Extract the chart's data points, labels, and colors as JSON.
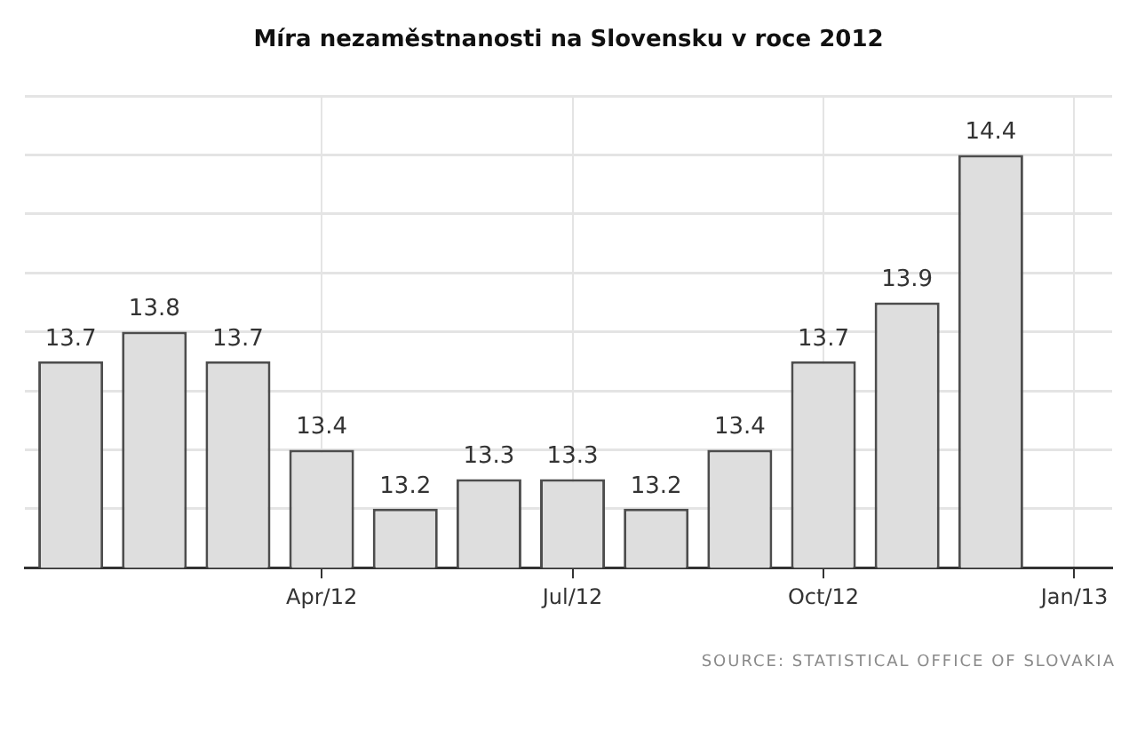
{
  "chart_data": {
    "type": "bar",
    "title": "Míra nezaměstnanosti na Slovensku v roce 2012",
    "x": [
      "2012-01",
      "2012-02",
      "2012-03",
      "2012-04",
      "2012-05",
      "2012-06",
      "2012-07",
      "2012-08",
      "2012-09",
      "2012-10",
      "2012-11",
      "2012-12"
    ],
    "values": [
      13.7,
      13.8,
      13.7,
      13.4,
      13.2,
      13.3,
      13.3,
      13.2,
      13.4,
      13.7,
      13.9,
      14.4
    ],
    "color": "#dedede",
    "xlim": [
      "2011-12-15",
      "2013-01-15"
    ],
    "xticks": [
      {
        "value": "2012-04",
        "label": "Apr/12"
      },
      {
        "value": "2012-07",
        "label": "Jul/12"
      },
      {
        "value": "2012-10",
        "label": "Oct/12"
      },
      {
        "value": "2013-01",
        "label": "Jan/13"
      }
    ],
    "ylim": [
      13,
      14.6
    ],
    "yticks": [
      {
        "value": 13,
        "label": null
      },
      {
        "value": 13.2,
        "label": null
      },
      {
        "value": 13.4,
        "label": null
      },
      {
        "value": 13.6,
        "label": null
      },
      {
        "value": 13.8,
        "label": null
      },
      {
        "value": 14,
        "label": null
      },
      {
        "value": 14.2,
        "label": null
      },
      {
        "value": 14.4,
        "label": null
      },
      {
        "value": 14.6,
        "label": null
      }
    ],
    "tick_labels": "x",
    "grid": true,
    "data_labels": true,
    "annotations": [
      "SOURCE: STATISTICAL OFFICE OF SLOVAKIA"
    ]
  }
}
